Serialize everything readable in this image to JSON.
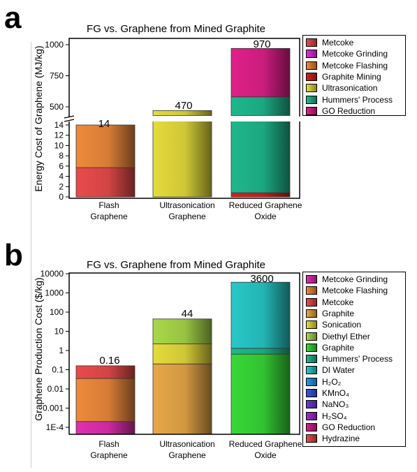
{
  "panels": [
    {
      "label": "a",
      "title": "FG vs. Graphene from Mined Graphite",
      "ylabel": "Energy Cost of Graphene (MJ/kg)",
      "categories": [
        "Flash Graphene",
        "Ultrasonication Graphene",
        "Reduced Graphene Oxide"
      ],
      "totals": [
        "14",
        "470",
        "970"
      ],
      "legend": [
        {
          "name": "Metcoke",
          "color": "#e94b4b"
        },
        {
          "name": "Metcoke Grinding",
          "color": "#e030e0"
        },
        {
          "name": "Metcoke Flashing",
          "color": "#ee8a3c"
        },
        {
          "name": "Graphite Mining",
          "color": "#d81f1f"
        },
        {
          "name": "Ultrasonication",
          "color": "#e5dc3c"
        },
        {
          "name": "Hummers' Process",
          "color": "#1fb88c"
        },
        {
          "name": "GO Reduction",
          "color": "#e0208a"
        }
      ]
    },
    {
      "label": "b",
      "title": "FG vs. Graphene from Mined Graphite",
      "ylabel": "Graphene Production Cost ($/kg)",
      "categories": [
        "Flash Graphene",
        "Ultrasonication Graphene",
        "Reduced Graphene Oxide"
      ],
      "totals": [
        "0.16",
        "44",
        "3600"
      ],
      "legend": [
        {
          "name": "Metcoke Grinding",
          "color": "#e030b0"
        },
        {
          "name": "Metcoke Flashing",
          "color": "#ee8a3c"
        },
        {
          "name": "Metcoke",
          "color": "#e94b4b"
        },
        {
          "name": "Graphite",
          "color": "#e8a848"
        },
        {
          "name": "Sonication",
          "color": "#e5dc3c"
        },
        {
          "name": "Diethyl Ether",
          "color": "#a8d84a"
        },
        {
          "name": "Graphite",
          "color": "#38d838"
        },
        {
          "name": "Hummers' Process",
          "color": "#1fb88c"
        },
        {
          "name": "DI Water",
          "color": "#28c8c8"
        },
        {
          "name": "H₂O₂",
          "color": "#2898e8"
        },
        {
          "name": "KMnO₄",
          "color": "#3858e0"
        },
        {
          "name": "NaNO₃",
          "color": "#6a3ad8"
        },
        {
          "name": "H₂SO₄",
          "color": "#a030d0"
        },
        {
          "name": "GO Reduction",
          "color": "#d8208a"
        },
        {
          "name": "Hydrazine",
          "color": "#e94b4b"
        }
      ]
    }
  ],
  "chart_data": [
    {
      "type": "bar",
      "stacked": true,
      "title": "FG vs. Graphene from Mined Graphite",
      "ylabel": "Energy Cost of Graphene (MJ/kg)",
      "categories": [
        "Flash Graphene",
        "Ultrasonication Graphene",
        "Reduced Graphene Oxide"
      ],
      "y_axis_break": {
        "lower": [
          0,
          14.6
        ],
        "upper": [
          430,
          1050
        ]
      },
      "yticks_lower": [
        0,
        2,
        4,
        6,
        8,
        10,
        12,
        14
      ],
      "yticks_upper": [
        500,
        750,
        1000
      ],
      "segments": [
        [
          {
            "name": "Metcoke",
            "from": 0,
            "to": 5.7
          },
          {
            "name": "Metcoke Flashing",
            "from": 5.7,
            "to": 14
          }
        ],
        [
          {
            "name": "Ultrasonication",
            "from": 0,
            "to": 470
          }
        ],
        [
          {
            "name": "Graphite Mining",
            "from": 0,
            "to": 0.8
          },
          {
            "name": "Hummers' Process",
            "from": 0.8,
            "to": 580
          },
          {
            "name": "GO Reduction",
            "from": 580,
            "to": 970
          }
        ]
      ],
      "totals": [
        14,
        470,
        970
      ],
      "legend_position": "right"
    },
    {
      "type": "bar",
      "stacked": true,
      "log_scale": true,
      "title": "FG vs. Graphene from Mined Graphite",
      "ylabel": "Graphene Production Cost ($/kg)",
      "categories": [
        "Flash Graphene",
        "Ultrasonication Graphene",
        "Reduced Graphene Oxide"
      ],
      "ylim": [
        5e-05,
        10000
      ],
      "yticks": [
        "1E-4",
        "0.001",
        "0.01",
        "0.1",
        "1",
        "10",
        "100",
        "1000",
        "10000"
      ],
      "segments": [
        [
          {
            "name": "Metcoke Grinding",
            "from": 5e-05,
            "to": 0.0002
          },
          {
            "name": "Metcoke Flashing",
            "from": 0.0002,
            "to": 0.035
          },
          {
            "name": "Metcoke",
            "from": 0.035,
            "to": 0.16
          }
        ],
        [
          {
            "name": "Graphite",
            "from": 5e-05,
            "to": 0.2
          },
          {
            "name": "Sonication",
            "from": 0.2,
            "to": 2.2
          },
          {
            "name": "Diethyl Ether",
            "from": 2.2,
            "to": 44
          }
        ],
        [
          {
            "name": "Graphite",
            "from": 5e-05,
            "to": 0.65
          },
          {
            "name": "Hummers' Process",
            "from": 0.65,
            "to": 1.3
          },
          {
            "name": "DI Water",
            "from": 1.3,
            "to": 3600
          }
        ]
      ],
      "totals": [
        0.16,
        44,
        3600
      ],
      "legend_position": "right"
    }
  ]
}
